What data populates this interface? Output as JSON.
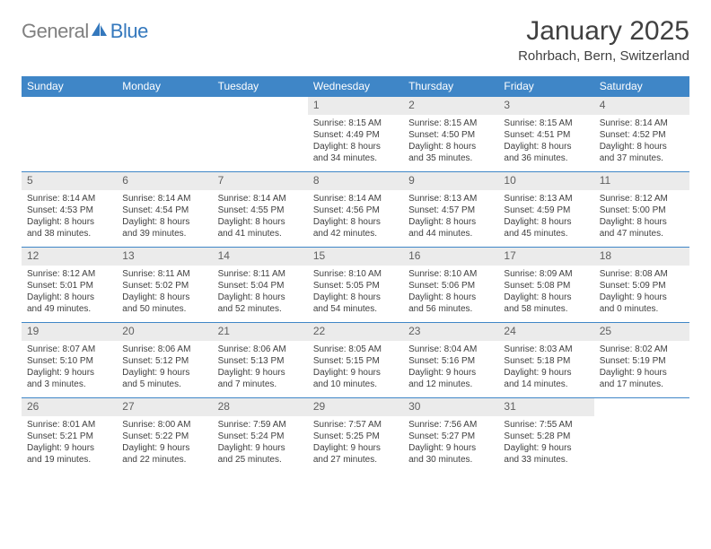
{
  "logo": {
    "general": "General",
    "blue": "Blue",
    "icon_fill": "#3478bd"
  },
  "title": "January 2025",
  "location": "Rohrbach, Bern, Switzerland",
  "colors": {
    "header_bg": "#3f86c7",
    "header_text": "#ffffff",
    "daynum_bg": "#ebebeb",
    "border": "#3f86c7",
    "text": "#404040"
  },
  "weekdays": [
    "Sunday",
    "Monday",
    "Tuesday",
    "Wednesday",
    "Thursday",
    "Friday",
    "Saturday"
  ],
  "weeks": [
    [
      null,
      null,
      null,
      {
        "n": "1",
        "sr": "8:15 AM",
        "ss": "4:49 PM",
        "dl": "8 hours and 34 minutes."
      },
      {
        "n": "2",
        "sr": "8:15 AM",
        "ss": "4:50 PM",
        "dl": "8 hours and 35 minutes."
      },
      {
        "n": "3",
        "sr": "8:15 AM",
        "ss": "4:51 PM",
        "dl": "8 hours and 36 minutes."
      },
      {
        "n": "4",
        "sr": "8:14 AM",
        "ss": "4:52 PM",
        "dl": "8 hours and 37 minutes."
      }
    ],
    [
      {
        "n": "5",
        "sr": "8:14 AM",
        "ss": "4:53 PM",
        "dl": "8 hours and 38 minutes."
      },
      {
        "n": "6",
        "sr": "8:14 AM",
        "ss": "4:54 PM",
        "dl": "8 hours and 39 minutes."
      },
      {
        "n": "7",
        "sr": "8:14 AM",
        "ss": "4:55 PM",
        "dl": "8 hours and 41 minutes."
      },
      {
        "n": "8",
        "sr": "8:14 AM",
        "ss": "4:56 PM",
        "dl": "8 hours and 42 minutes."
      },
      {
        "n": "9",
        "sr": "8:13 AM",
        "ss": "4:57 PM",
        "dl": "8 hours and 44 minutes."
      },
      {
        "n": "10",
        "sr": "8:13 AM",
        "ss": "4:59 PM",
        "dl": "8 hours and 45 minutes."
      },
      {
        "n": "11",
        "sr": "8:12 AM",
        "ss": "5:00 PM",
        "dl": "8 hours and 47 minutes."
      }
    ],
    [
      {
        "n": "12",
        "sr": "8:12 AM",
        "ss": "5:01 PM",
        "dl": "8 hours and 49 minutes."
      },
      {
        "n": "13",
        "sr": "8:11 AM",
        "ss": "5:02 PM",
        "dl": "8 hours and 50 minutes."
      },
      {
        "n": "14",
        "sr": "8:11 AM",
        "ss": "5:04 PM",
        "dl": "8 hours and 52 minutes."
      },
      {
        "n": "15",
        "sr": "8:10 AM",
        "ss": "5:05 PM",
        "dl": "8 hours and 54 minutes."
      },
      {
        "n": "16",
        "sr": "8:10 AM",
        "ss": "5:06 PM",
        "dl": "8 hours and 56 minutes."
      },
      {
        "n": "17",
        "sr": "8:09 AM",
        "ss": "5:08 PM",
        "dl": "8 hours and 58 minutes."
      },
      {
        "n": "18",
        "sr": "8:08 AM",
        "ss": "5:09 PM",
        "dl": "9 hours and 0 minutes."
      }
    ],
    [
      {
        "n": "19",
        "sr": "8:07 AM",
        "ss": "5:10 PM",
        "dl": "9 hours and 3 minutes."
      },
      {
        "n": "20",
        "sr": "8:06 AM",
        "ss": "5:12 PM",
        "dl": "9 hours and 5 minutes."
      },
      {
        "n": "21",
        "sr": "8:06 AM",
        "ss": "5:13 PM",
        "dl": "9 hours and 7 minutes."
      },
      {
        "n": "22",
        "sr": "8:05 AM",
        "ss": "5:15 PM",
        "dl": "9 hours and 10 minutes."
      },
      {
        "n": "23",
        "sr": "8:04 AM",
        "ss": "5:16 PM",
        "dl": "9 hours and 12 minutes."
      },
      {
        "n": "24",
        "sr": "8:03 AM",
        "ss": "5:18 PM",
        "dl": "9 hours and 14 minutes."
      },
      {
        "n": "25",
        "sr": "8:02 AM",
        "ss": "5:19 PM",
        "dl": "9 hours and 17 minutes."
      }
    ],
    [
      {
        "n": "26",
        "sr": "8:01 AM",
        "ss": "5:21 PM",
        "dl": "9 hours and 19 minutes."
      },
      {
        "n": "27",
        "sr": "8:00 AM",
        "ss": "5:22 PM",
        "dl": "9 hours and 22 minutes."
      },
      {
        "n": "28",
        "sr": "7:59 AM",
        "ss": "5:24 PM",
        "dl": "9 hours and 25 minutes."
      },
      {
        "n": "29",
        "sr": "7:57 AM",
        "ss": "5:25 PM",
        "dl": "9 hours and 27 minutes."
      },
      {
        "n": "30",
        "sr": "7:56 AM",
        "ss": "5:27 PM",
        "dl": "9 hours and 30 minutes."
      },
      {
        "n": "31",
        "sr": "7:55 AM",
        "ss": "5:28 PM",
        "dl": "9 hours and 33 minutes."
      },
      null
    ]
  ],
  "labels": {
    "sunrise": "Sunrise:",
    "sunset": "Sunset:",
    "daylight": "Daylight:"
  }
}
